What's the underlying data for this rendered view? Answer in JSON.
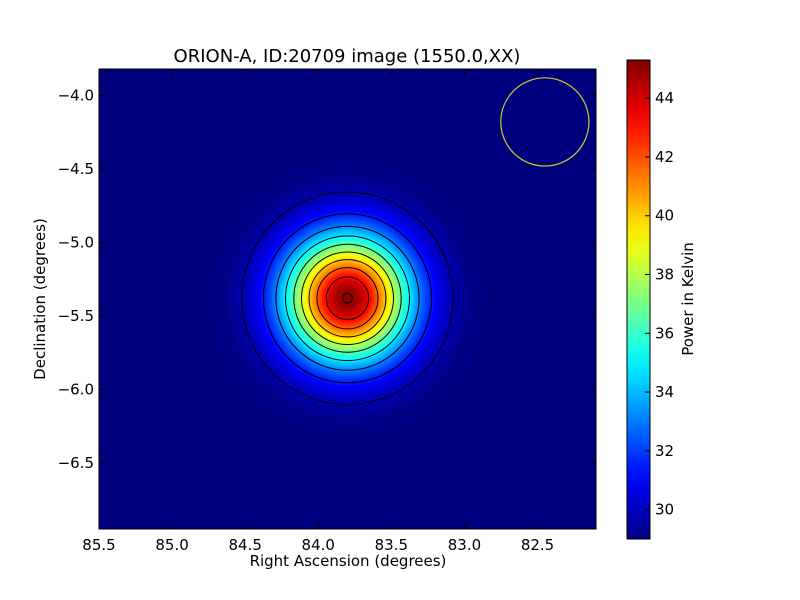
{
  "chart_data": {
    "type": "heatmap",
    "title": "ORION-A, ID:20709 image (1550.0,XX)",
    "xlabel": "Right Ascension (degrees)",
    "ylabel": "Declination (degrees)",
    "colorbar_label": "Power in Kelvin",
    "colormap": "jet",
    "xlim": [
      85.5,
      82.1
    ],
    "ylim": [
      -6.95,
      -3.82
    ],
    "x_ticks": [
      85.5,
      85.0,
      84.5,
      84.0,
      83.5,
      83.0,
      82.5
    ],
    "x_tick_labels": [
      "85.5",
      "85.0",
      "84.5",
      "84.0",
      "83.5",
      "83.0",
      "82.5"
    ],
    "y_ticks": [
      -4.0,
      -4.5,
      -5.0,
      -5.5,
      -6.0,
      -6.5
    ],
    "y_tick_labels": [
      "−4.0",
      "−4.5",
      "−5.0",
      "−5.5",
      "−6.0",
      "−6.5"
    ],
    "colorbar_range": [
      29.0,
      45.3
    ],
    "colorbar_ticks": [
      30,
      32,
      34,
      36,
      38,
      40,
      42,
      44
    ],
    "colorbar_tick_labels": [
      "30",
      "32",
      "34",
      "36",
      "38",
      "40",
      "42",
      "44"
    ],
    "source": {
      "peak_ra": 83.8,
      "peak_dec": -5.38,
      "peak_value": 45.3,
      "background": 29.0,
      "sigma_deg": 0.3
    },
    "contour_levels": [
      29.9,
      31.6,
      33.3,
      35.0,
      36.7,
      38.4,
      40.1,
      41.8,
      43.5,
      45.2
    ],
    "beam_circle": {
      "center_ra": 82.45,
      "center_dec": -4.18,
      "radius_deg": 0.3,
      "color": "#cccc22"
    },
    "grid": false
  }
}
